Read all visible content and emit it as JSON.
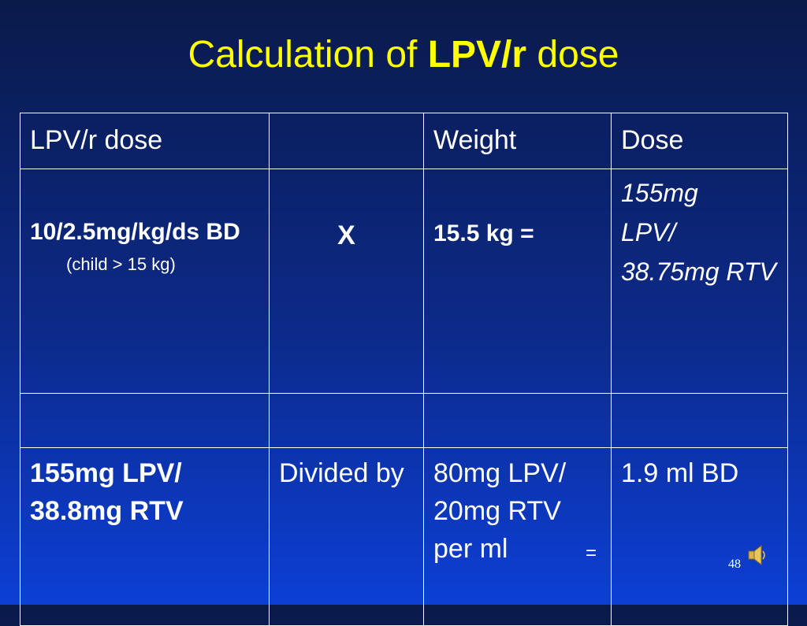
{
  "title": {
    "prefix": "Calculation of ",
    "bold": "LPV/r",
    "suffix": " dose"
  },
  "table": {
    "headers": [
      "LPV/r  dose",
      "",
      "Weight",
      "Dose"
    ],
    "row1": {
      "formula_main": "10/2.5mg/kg/ds BD",
      "formula_note": "(child > 15 kg)",
      "operator": "X",
      "weight": "15.5 kg =",
      "dose_lines": [
        "155mg",
        "LPV/",
        "38.75mg RTV"
      ]
    },
    "row2": [
      "",
      "",
      "",
      ""
    ],
    "row3": {
      "col1": "155mg LPV/ 38.8mg RTV",
      "col2": "Divided by",
      "col3": "80mg LPV/ 20mg RTV per ml",
      "col3_equals": "=",
      "col4": "1.9 ml BD"
    }
  },
  "footer": {
    "slide_number": "48",
    "audio_icon": "speaker-icon"
  }
}
